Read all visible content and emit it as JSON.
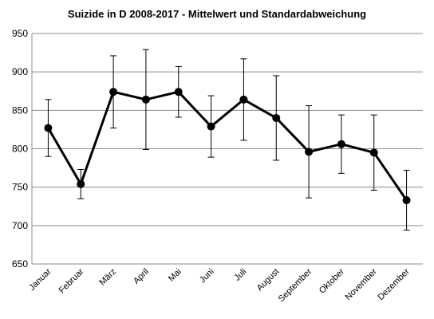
{
  "chart_data": {
    "type": "line",
    "title": "Suizide  in D 2008-2017  - Mittelwert und Standardabweichung",
    "xlabel": "",
    "ylabel": "",
    "ylim": [
      650,
      950
    ],
    "yticks": [
      650,
      700,
      750,
      800,
      850,
      900,
      950
    ],
    "grid": true,
    "legend": "none",
    "categories": [
      "Januar",
      "Februar",
      "März",
      "April",
      "Mai",
      "Juni",
      "Juli",
      "August",
      "September",
      "Oktober",
      "November",
      "Dezember"
    ],
    "series": [
      {
        "values": [
          827,
          754,
          874,
          864,
          874,
          829,
          864,
          840,
          796,
          806,
          795,
          733
        ],
        "error": [
          37,
          19,
          47,
          65,
          33,
          40,
          53,
          55,
          60,
          38,
          49,
          39
        ],
        "color": "#000000"
      }
    ]
  }
}
